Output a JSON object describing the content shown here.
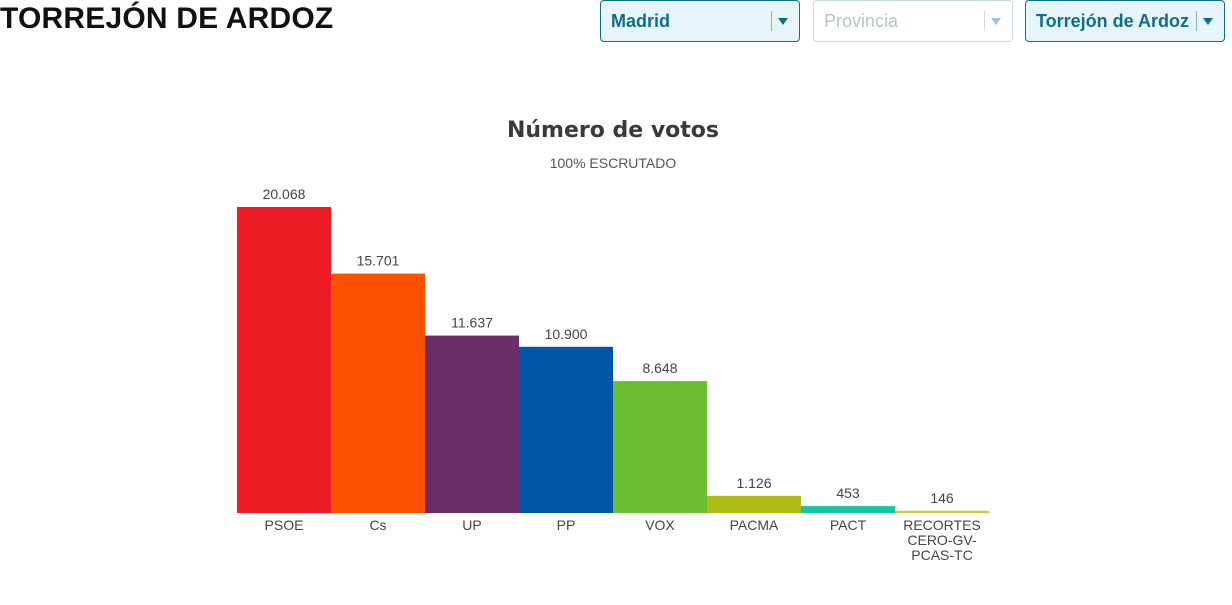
{
  "header": {
    "title": "TORREJÓN DE ARDOZ"
  },
  "filters": {
    "comunidad": {
      "value": "Madrid"
    },
    "provincia": {
      "placeholder": "Provincia"
    },
    "municipio": {
      "value": "Torrejón de Ardoz"
    }
  },
  "chart_data": {
    "type": "bar",
    "title": "Número de votos",
    "subtitle": "100% ESCRUTADO",
    "categories": [
      "PSOE",
      "Cs",
      "UP",
      "PP",
      "VOX",
      "PACMA",
      "PACT",
      "RECORTES CERO-GV-PCAS-TC"
    ],
    "category_lines": [
      [
        "PSOE"
      ],
      [
        "Cs"
      ],
      [
        "UP"
      ],
      [
        "PP"
      ],
      [
        "VOX"
      ],
      [
        "PACMA"
      ],
      [
        "PACT"
      ],
      [
        "RECORTES",
        "CERO-GV-",
        "PCAS-TC"
      ]
    ],
    "values": [
      20068,
      15701,
      11637,
      10900,
      8648,
      1126,
      453,
      146
    ],
    "value_labels": [
      "20.068",
      "15.701",
      "11.637",
      "10.900",
      "8.648",
      "1.126",
      "453",
      "146"
    ],
    "colors": [
      "#ed1c24",
      "#fa5000",
      "#6b2e67",
      "#0056a7",
      "#6abe30",
      "#aebc14",
      "#15c4a6",
      "#c3cf3a"
    ],
    "ylim": [
      0,
      20068
    ],
    "grid": false,
    "legend": "none"
  }
}
